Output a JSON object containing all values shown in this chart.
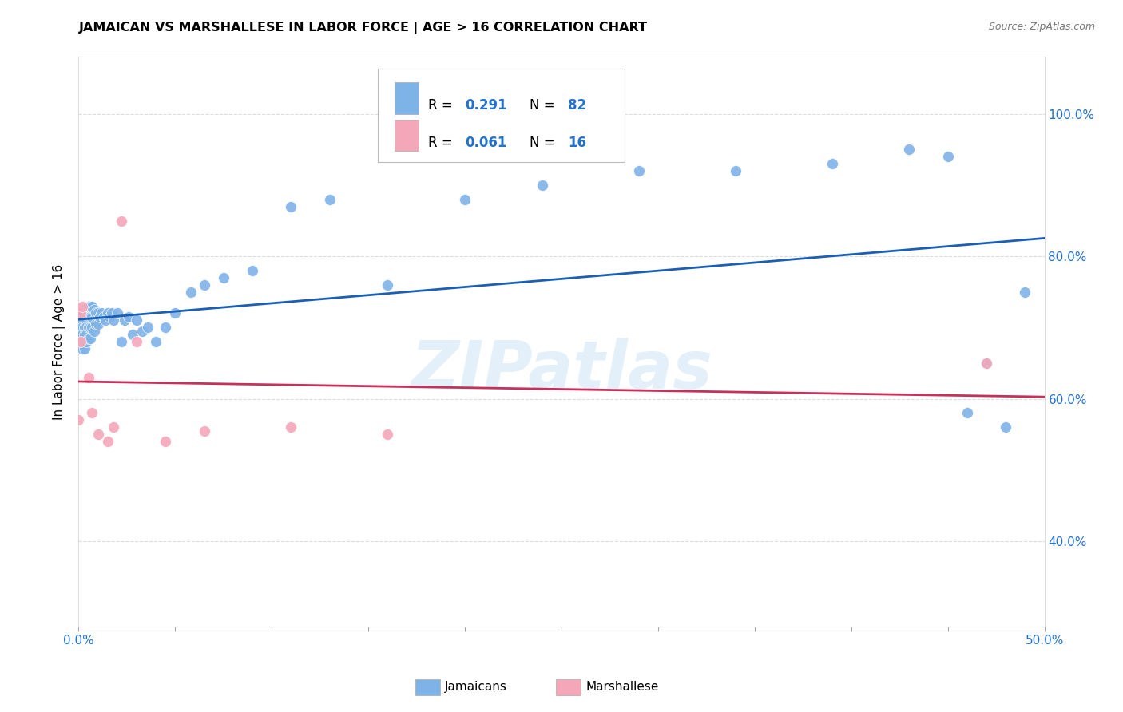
{
  "title": "JAMAICAN VS MARSHALLESE IN LABOR FORCE | AGE > 16 CORRELATION CHART",
  "source": "Source: ZipAtlas.com",
  "ylabel": "In Labor Force | Age > 16",
  "xlim": [
    0.0,
    0.5
  ],
  "ylim": [
    0.28,
    1.08
  ],
  "jamaican_color": "#7EB3E8",
  "marshallese_color": "#F4A7B9",
  "jamaican_line_color": "#1A5FB4",
  "marshallese_line_color": "#C8305A",
  "background_color": "#FFFFFF",
  "grid_color": "#DDDDDD",
  "jamaican_x": [
    0.0,
    0.0,
    0.001,
    0.001,
    0.001,
    0.001,
    0.001,
    0.001,
    0.001,
    0.001,
    0.002,
    0.002,
    0.002,
    0.002,
    0.002,
    0.002,
    0.003,
    0.003,
    0.003,
    0.003,
    0.003,
    0.003,
    0.004,
    0.004,
    0.004,
    0.004,
    0.004,
    0.005,
    0.005,
    0.005,
    0.005,
    0.006,
    0.006,
    0.006,
    0.006,
    0.007,
    0.007,
    0.007,
    0.008,
    0.008,
    0.008,
    0.009,
    0.009,
    0.01,
    0.01,
    0.011,
    0.012,
    0.013,
    0.014,
    0.015,
    0.016,
    0.017,
    0.018,
    0.02,
    0.022,
    0.024,
    0.026,
    0.028,
    0.03,
    0.033,
    0.036,
    0.04,
    0.045,
    0.05,
    0.058,
    0.065,
    0.075,
    0.09,
    0.11,
    0.13,
    0.16,
    0.2,
    0.24,
    0.29,
    0.34,
    0.39,
    0.43,
    0.45,
    0.46,
    0.47,
    0.48,
    0.49
  ],
  "jamaican_y": [
    0.7,
    0.69,
    0.715,
    0.705,
    0.695,
    0.685,
    0.71,
    0.7,
    0.69,
    0.68,
    0.72,
    0.71,
    0.7,
    0.69,
    0.68,
    0.67,
    0.725,
    0.715,
    0.7,
    0.69,
    0.68,
    0.67,
    0.72,
    0.71,
    0.7,
    0.69,
    0.68,
    0.73,
    0.715,
    0.7,
    0.685,
    0.73,
    0.715,
    0.7,
    0.685,
    0.73,
    0.715,
    0.7,
    0.725,
    0.71,
    0.695,
    0.72,
    0.705,
    0.72,
    0.705,
    0.715,
    0.72,
    0.715,
    0.71,
    0.72,
    0.715,
    0.72,
    0.71,
    0.72,
    0.68,
    0.71,
    0.715,
    0.69,
    0.71,
    0.695,
    0.7,
    0.68,
    0.7,
    0.72,
    0.75,
    0.76,
    0.77,
    0.78,
    0.87,
    0.88,
    0.76,
    0.88,
    0.9,
    0.92,
    0.92,
    0.93,
    0.95,
    0.94,
    0.58,
    0.65,
    0.56,
    0.75
  ],
  "marshallese_x": [
    0.0,
    0.001,
    0.001,
    0.002,
    0.005,
    0.007,
    0.01,
    0.015,
    0.018,
    0.022,
    0.03,
    0.045,
    0.065,
    0.11,
    0.16,
    0.47
  ],
  "marshallese_y": [
    0.57,
    0.72,
    0.68,
    0.73,
    0.63,
    0.58,
    0.55,
    0.54,
    0.56,
    0.85,
    0.68,
    0.54,
    0.555,
    0.56,
    0.55,
    0.65
  ],
  "watermark": "ZIPatlas",
  "yticks": [
    0.4,
    0.6,
    0.8,
    1.0
  ],
  "ytick_labels": [
    "40.0%",
    "60.0%",
    "80.0%",
    "100.0%"
  ],
  "xticks": [
    0.0,
    0.05,
    0.1,
    0.15,
    0.2,
    0.25,
    0.3,
    0.35,
    0.4,
    0.45,
    0.5
  ],
  "blue_color": "#2471CC"
}
